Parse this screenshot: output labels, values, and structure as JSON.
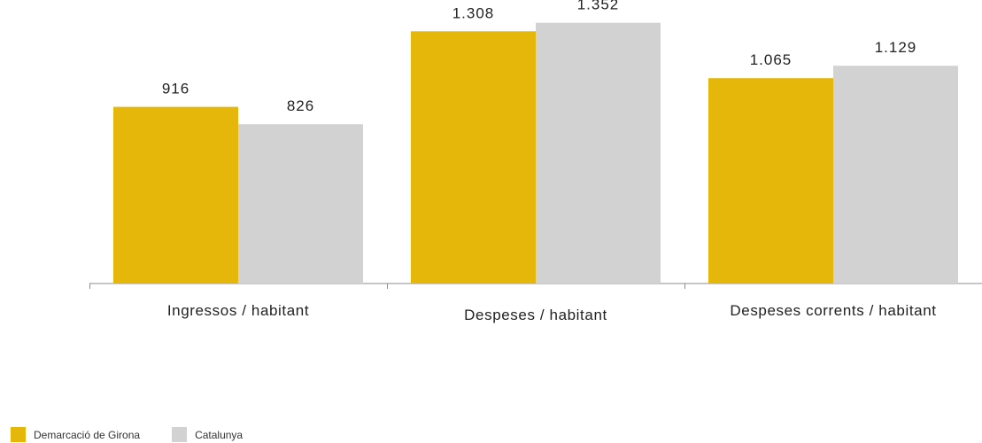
{
  "chart_data": {
    "type": "bar",
    "categories": [
      "Ingressos / habitant",
      "Despeses / habitant",
      "Despeses corrents / habitant"
    ],
    "series": [
      {
        "name": "Demarcació de Girona",
        "color": "#e5b70b",
        "values": [
          916,
          1308,
          1065
        ],
        "labels": [
          "916",
          "1.308",
          "1.065"
        ]
      },
      {
        "name": "Catalunya",
        "color": "#d2d2d2",
        "values": [
          826,
          1352,
          1129
        ],
        "labels": [
          "826",
          "1.352",
          "1.129"
        ]
      }
    ],
    "ylim": [
      0,
      1470
    ],
    "grid": false,
    "legend_position": "bottom-left",
    "axis_color": "#8c8c8c"
  }
}
